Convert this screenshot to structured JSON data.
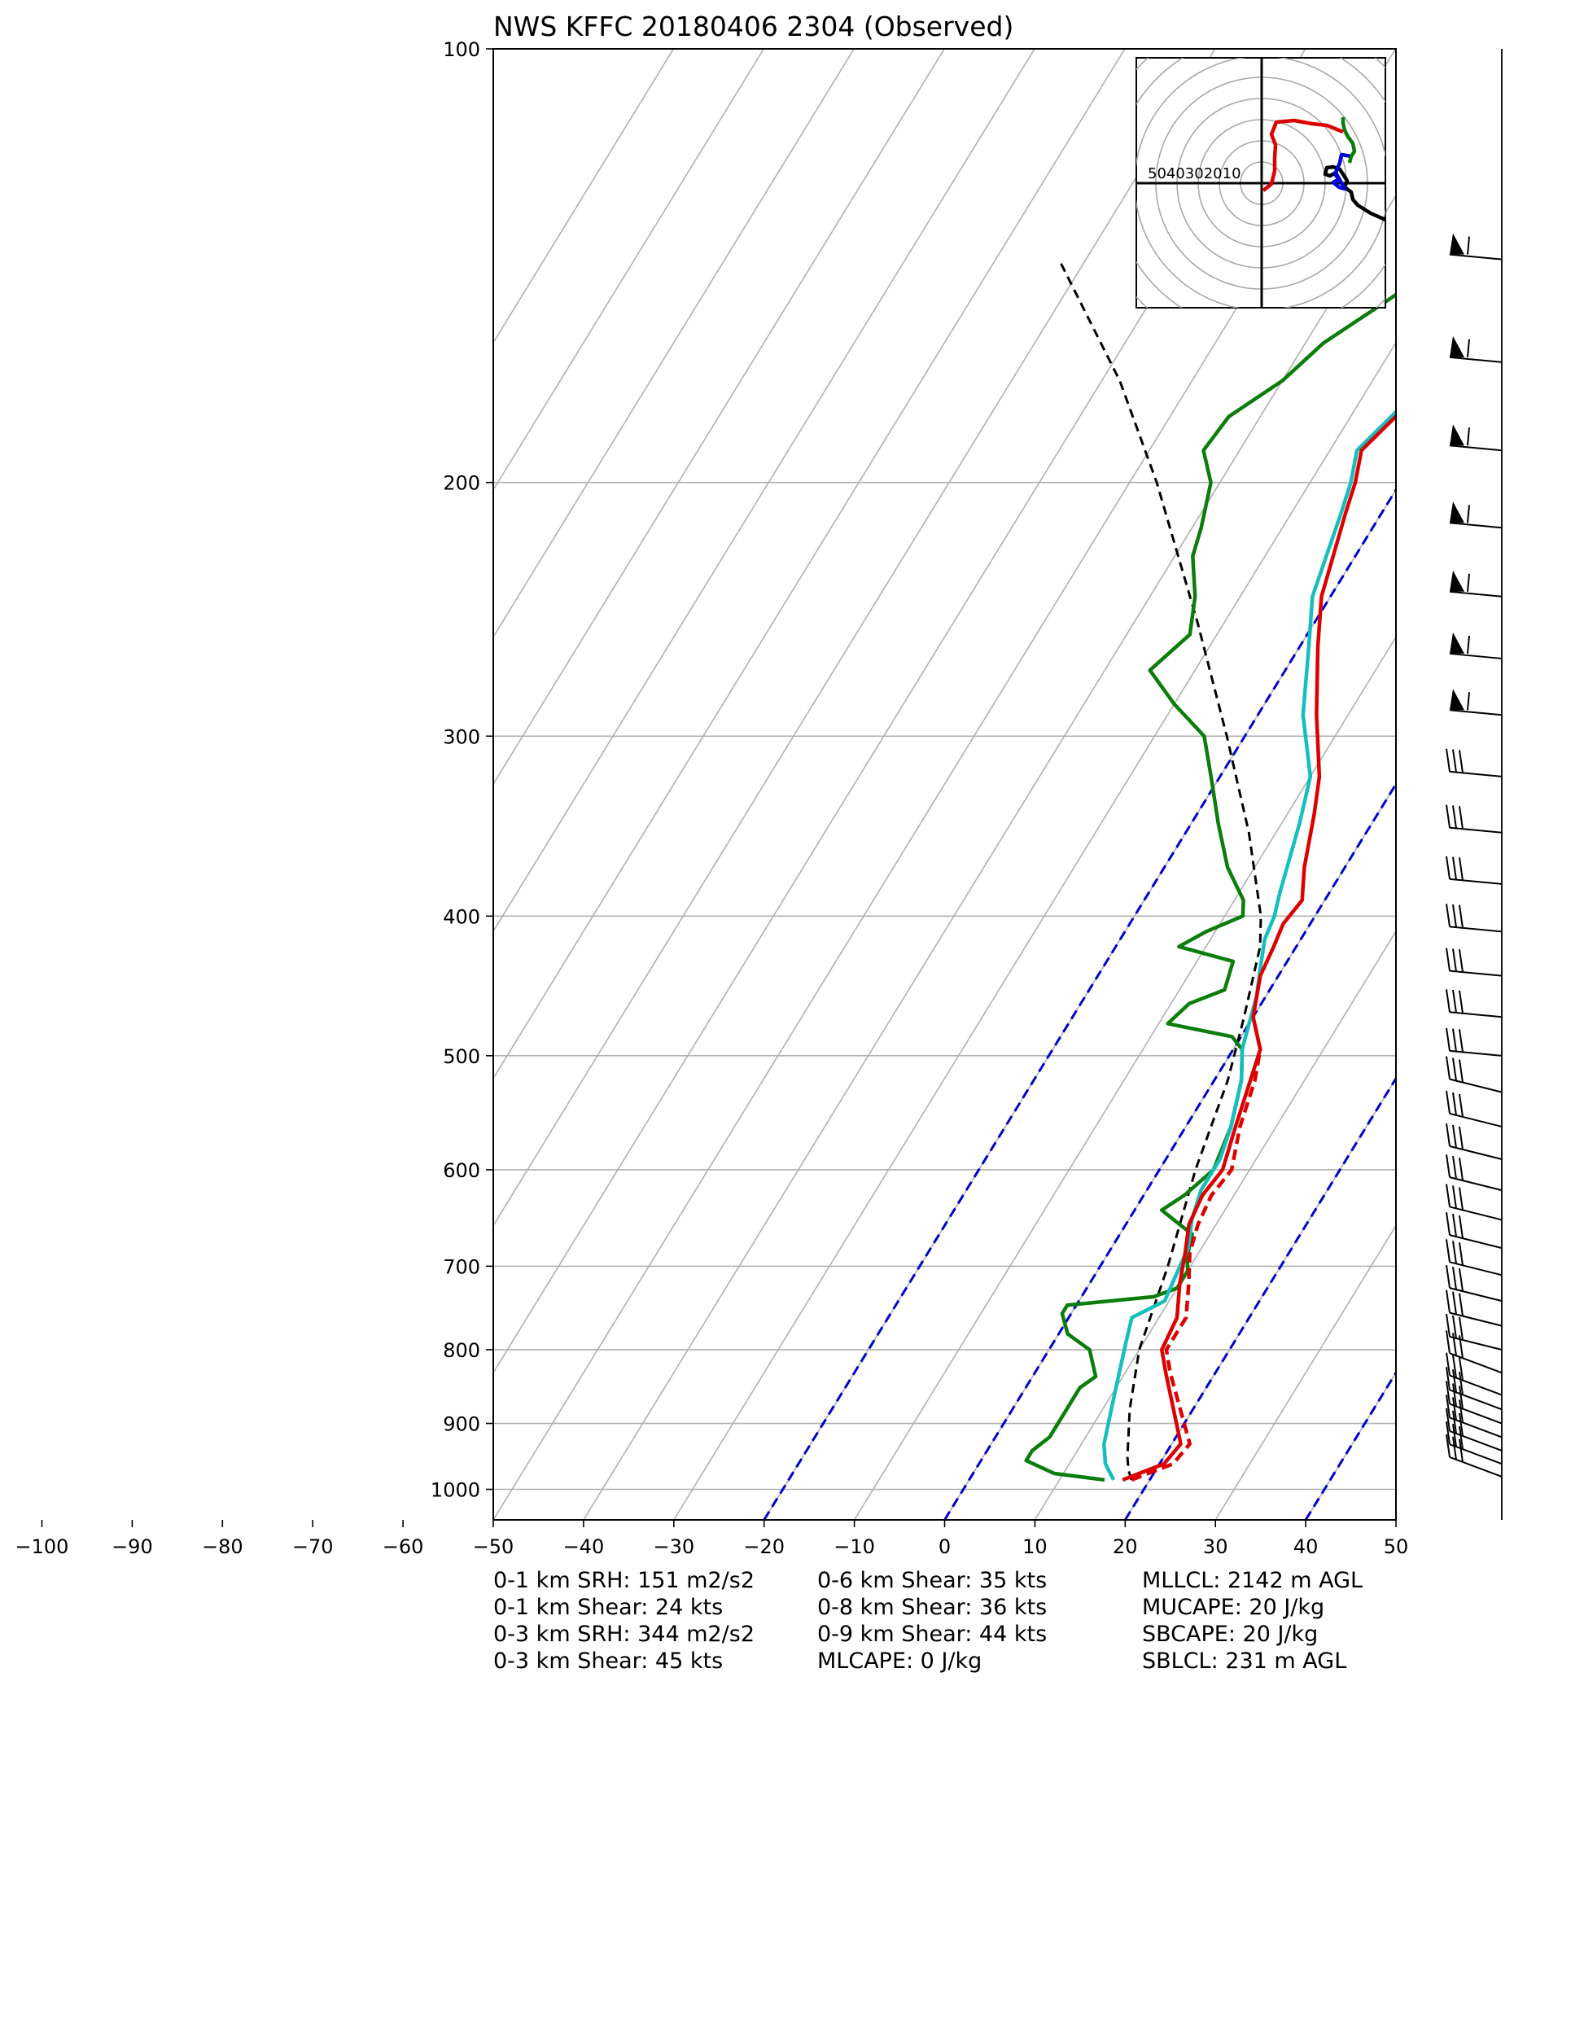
{
  "chart_data": {
    "type": "line",
    "title": "NWS KFFC 20180406 2304   (Observed)",
    "xlim": [
      -50,
      50
    ],
    "x_ticks_all": [
      -100,
      -90,
      -80,
      -70,
      -60,
      -50,
      -40,
      -30,
      -20,
      -10,
      0,
      10,
      20,
      30,
      40,
      50
    ],
    "x_tick_labels": [
      "−100",
      "−90",
      "−80",
      "−70",
      "−60",
      "−50",
      "−40",
      "−30",
      "−20",
      "−10",
      "0",
      "10",
      "20",
      "30",
      "40",
      "50"
    ],
    "ylim_hpa": [
      1050,
      100
    ],
    "y_scale": "log",
    "y_ticks": [
      100,
      200,
      300,
      400,
      500,
      600,
      700,
      800,
      900,
      1000
    ],
    "y_tick_labels": [
      "100",
      "200",
      "300",
      "400",
      "500",
      "600",
      "700",
      "800",
      "900",
      "1000"
    ],
    "grid": true,
    "skew_isotherms_gray": [
      -50,
      -40,
      -30,
      -20,
      -10,
      0,
      10,
      20,
      30,
      40,
      50,
      60,
      70,
      80,
      90,
      100
    ],
    "blue_dashed_isotherms": [
      -20,
      0,
      20,
      40
    ],
    "colors": {
      "temperature": "#dd0000",
      "virtual_temperature": "#dd0000",
      "dewpoint": "#0a7d0a",
      "wetbulb": "#17bebe",
      "parcel": "#000000",
      "isotherm_special": "#0000cc",
      "grid": "#b0b0b0"
    },
    "series": [
      {
        "key": "temperature",
        "style": "solid",
        "points": [
          [
            17.0,
            985
          ],
          [
            20.5,
            960
          ],
          [
            21.0,
            930
          ],
          [
            14.5,
            830
          ],
          [
            12.5,
            800
          ],
          [
            12.0,
            760
          ],
          [
            10.0,
            720
          ],
          [
            8.5,
            685
          ],
          [
            7.0,
            655
          ],
          [
            6.5,
            625
          ],
          [
            7.0,
            600
          ],
          [
            5.5,
            560
          ],
          [
            4.0,
            520
          ],
          [
            3.0,
            495
          ],
          [
            0.0,
            470
          ],
          [
            -2.0,
            440
          ],
          [
            -2.5,
            420
          ],
          [
            -3.0,
            405
          ],
          [
            -2.5,
            390
          ],
          [
            -4.5,
            370
          ],
          [
            -7.0,
            340
          ],
          [
            -9.0,
            320
          ],
          [
            -13.5,
            290
          ],
          [
            -18.0,
            260
          ],
          [
            -21.0,
            240
          ],
          [
            -24.0,
            210
          ],
          [
            -25.0,
            200
          ],
          [
            -26.5,
            190
          ],
          [
            -25.0,
            180
          ],
          [
            -23.5,
            170
          ],
          [
            -19.5,
            160
          ],
          [
            -16.5,
            150
          ],
          [
            -13.5,
            140
          ],
          [
            -11.0,
            130
          ],
          [
            -7.5,
            120
          ],
          [
            -5.0,
            110
          ],
          [
            -2.0,
            100
          ]
        ]
      },
      {
        "key": "virtual_temperature",
        "style": "dashed",
        "points": [
          [
            18.0,
            985
          ],
          [
            21.5,
            960
          ],
          [
            22.0,
            930
          ],
          [
            15.0,
            830
          ],
          [
            13.0,
            800
          ],
          [
            13.0,
            760
          ],
          [
            11.0,
            720
          ],
          [
            9.0,
            685
          ],
          [
            8.0,
            655
          ],
          [
            7.5,
            625
          ],
          [
            8.0,
            600
          ],
          [
            6.0,
            560
          ],
          [
            4.5,
            520
          ],
          [
            3.0,
            495
          ],
          [
            0.0,
            470
          ]
        ]
      },
      {
        "key": "wetbulb",
        "style": "solid",
        "points": [
          [
            16.0,
            985
          ],
          [
            14.0,
            960
          ],
          [
            12.5,
            930
          ],
          [
            10.0,
            850
          ],
          [
            8.0,
            790
          ],
          [
            7.0,
            760
          ],
          [
            9.5,
            740
          ],
          [
            9.0,
            710
          ],
          [
            8.5,
            680
          ],
          [
            7.0,
            650
          ],
          [
            6.0,
            620
          ],
          [
            6.0,
            590
          ],
          [
            5.0,
            560
          ],
          [
            3.0,
            520
          ],
          [
            1.0,
            495
          ],
          [
            0.0,
            475
          ],
          [
            -1.0,
            455
          ],
          [
            -2.5,
            435
          ],
          [
            -4.0,
            415
          ],
          [
            -4.5,
            400
          ],
          [
            -5.5,
            385
          ],
          [
            -8.0,
            345
          ],
          [
            -10.0,
            320
          ],
          [
            -15.0,
            290
          ],
          [
            -19.0,
            260
          ],
          [
            -22.0,
            240
          ],
          [
            -24.5,
            210
          ],
          [
            -25.5,
            200
          ],
          [
            -27.0,
            190
          ],
          [
            -25.5,
            180
          ],
          [
            -24.0,
            170
          ],
          [
            -20.0,
            160
          ],
          [
            -17.0,
            150
          ],
          [
            -14.0,
            140
          ],
          [
            -11.5,
            130
          ],
          [
            -8.0,
            120
          ],
          [
            -5.5,
            110
          ],
          [
            -2.0,
            100
          ]
        ]
      },
      {
        "key": "dewpoint",
        "style": "solid",
        "points": [
          [
            15.0,
            985
          ],
          [
            9.0,
            975
          ],
          [
            5.0,
            955
          ],
          [
            5.0,
            940
          ],
          [
            6.0,
            920
          ],
          [
            6.0,
            880
          ],
          [
            6.0,
            850
          ],
          [
            7.0,
            835
          ],
          [
            4.5,
            800
          ],
          [
            1.0,
            780
          ],
          [
            -1.0,
            755
          ],
          [
            -1.0,
            745
          ],
          [
            8.0,
            735
          ],
          [
            10.0,
            725
          ],
          [
            10.0,
            705
          ],
          [
            9.0,
            690
          ],
          [
            8.0,
            665
          ],
          [
            6.0,
            655
          ],
          [
            3.0,
            640
          ],
          [
            4.5,
            625
          ],
          [
            6.0,
            600
          ],
          [
            5.0,
            560
          ],
          [
            3.0,
            520
          ],
          [
            1.0,
            495
          ],
          [
            -1.0,
            485
          ],
          [
            -9.0,
            475
          ],
          [
            -8.0,
            460
          ],
          [
            -5.0,
            450
          ],
          [
            -5.5,
            440
          ],
          [
            -6.0,
            430
          ],
          [
            -13.0,
            420
          ],
          [
            -11.0,
            410
          ],
          [
            -8.0,
            400
          ],
          [
            -9.0,
            390
          ],
          [
            -13.0,
            370
          ],
          [
            -17.0,
            345
          ],
          [
            -21.0,
            320
          ],
          [
            -24.5,
            300
          ],
          [
            -30.0,
            285
          ],
          [
            -35.0,
            270
          ],
          [
            -33.0,
            255
          ],
          [
            -35.0,
            240
          ],
          [
            -38.0,
            225
          ],
          [
            -39.0,
            215
          ],
          [
            -41.0,
            200
          ],
          [
            -44.0,
            190
          ],
          [
            -43.5,
            180
          ],
          [
            -40.0,
            170
          ],
          [
            -38.0,
            160
          ],
          [
            -34.0,
            150
          ],
          [
            -30.0,
            140
          ],
          [
            -26.0,
            130
          ],
          [
            -22.0,
            120
          ],
          [
            -18.0,
            110
          ],
          [
            -14.5,
            100
          ]
        ]
      },
      {
        "key": "parcel",
        "style": "dashed",
        "points": [
          [
            18.0,
            985
          ],
          [
            17.0,
            970
          ],
          [
            16.0,
            950
          ],
          [
            13.0,
            880
          ],
          [
            10.0,
            800
          ],
          [
            7.5,
            700
          ],
          [
            4.0,
            600
          ],
          [
            1.5,
            520
          ],
          [
            -1.0,
            470
          ],
          [
            -4.0,
            420
          ],
          [
            -6.0,
            400
          ],
          [
            -13.0,
            350
          ],
          [
            -22.0,
            300
          ],
          [
            -33.0,
            250
          ],
          [
            -47.0,
            200
          ],
          [
            -58.0,
            170
          ],
          [
            -73.0,
            140
          ]
        ]
      }
    ],
    "wind_barbs_note": "wind barbs column on the right side of the plot",
    "hodograph": {
      "ring_labels": "5040302010",
      "colors": [
        "#000000",
        "#0000dd",
        "#0a7d0a",
        "#dd0000"
      ]
    }
  },
  "stats": {
    "col1": [
      "0-1 km SRH: 151 m2/s2",
      "0-1 km Shear: 24 kts",
      "0-3 km SRH: 344 m2/s2",
      "0-3 km Shear: 45 kts"
    ],
    "col2": [
      "0-6 km Shear: 35 kts",
      "0-8 km Shear: 36 kts",
      "0-9 km Shear: 44 kts",
      "MLCAPE: 0 J/kg"
    ],
    "col3": [
      "MLLCL: 2142 m AGL",
      "MUCAPE: 20 J/kg",
      "SBCAPE: 20 J/kg",
      "SBLCL: 231 m AGL"
    ]
  }
}
